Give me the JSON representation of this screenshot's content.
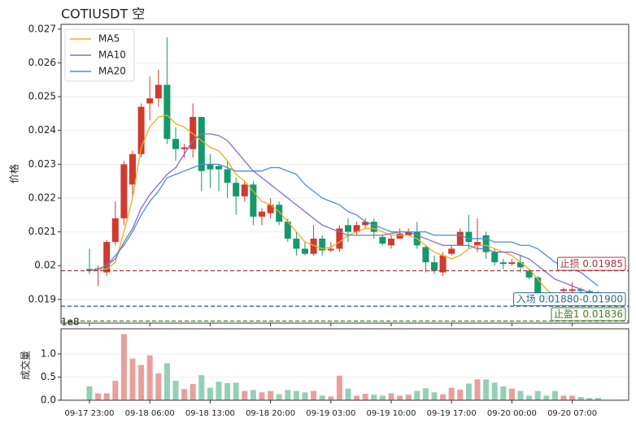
{
  "chart_data": [
    {
      "type": "candlestick",
      "title": "COTIUSDT 空",
      "ylabel": "价格",
      "up_color": "#d03a2f",
      "down_color": "#14996a",
      "grid": true,
      "legend": "upper left",
      "categories": [
        "09-17 23:00",
        null,
        null,
        null,
        null,
        null,
        null,
        "09-18 06:00",
        null,
        null,
        null,
        null,
        null,
        null,
        "09-18 13:00",
        null,
        null,
        null,
        null,
        null,
        null,
        "09-18 20:00",
        null,
        null,
        null,
        null,
        null,
        null,
        "09-19 03:00",
        null,
        null,
        null,
        null,
        null,
        null,
        "09-19 10:00",
        null,
        null,
        null,
        null,
        null,
        null,
        "09-19 17:00",
        null,
        null,
        null,
        null,
        null,
        null,
        "09-20 00:00",
        null,
        null,
        null,
        null,
        null,
        null,
        "09-20 07:00",
        null,
        null,
        null
      ],
      "open": [
        0.0199,
        0.01988,
        0.0198,
        0.0207,
        0.0214,
        0.0224,
        0.0233,
        0.0248,
        0.02495,
        0.02535,
        0.02375,
        0.02345,
        0.02345,
        0.0244,
        0.023,
        0.02295,
        0.02285,
        0.02245,
        0.02205,
        0.0224,
        0.02145,
        0.02155,
        0.0218,
        0.0213,
        0.0208,
        0.0205,
        0.02035,
        0.0208,
        0.02045,
        0.0205,
        0.0212,
        0.021,
        0.0212,
        0.0213,
        0.02085,
        0.0206,
        0.0208,
        0.0209,
        0.021,
        0.02055,
        0.0201,
        0.0198,
        0.02035,
        0.0206,
        0.021,
        0.0206,
        0.0209,
        0.0204,
        0.0201,
        0.02005,
        0.0201,
        0.01985,
        0.01965,
        0.01915,
        0.019,
        0.01925,
        0.01925,
        0.0193,
        0.01925,
        0.0192
      ],
      "high": [
        0.0205,
        0.02,
        0.02075,
        0.0219,
        0.0231,
        0.0234,
        0.0248,
        0.0256,
        0.0258,
        0.02675,
        0.0241,
        0.0236,
        0.0248,
        0.0244,
        0.0233,
        0.023,
        0.0231,
        0.0226,
        0.0225,
        0.0225,
        0.0217,
        0.022,
        0.0219,
        0.0214,
        0.021,
        0.0207,
        0.0212,
        0.0209,
        0.0207,
        0.0212,
        0.0214,
        0.0213,
        0.0214,
        0.0214,
        0.0209,
        0.0209,
        0.0211,
        0.0211,
        0.0213,
        0.0206,
        0.0203,
        0.0204,
        0.0206,
        0.0211,
        0.0215,
        0.0214,
        0.021,
        0.0205,
        0.0202,
        0.0202,
        0.0203,
        0.0199,
        0.0197,
        0.0192,
        0.01915,
        0.01935,
        0.0195,
        0.01935,
        0.0193,
        0.01925
      ],
      "low": [
        0.01975,
        0.0194,
        0.0197,
        0.0206,
        0.0212,
        0.022,
        0.0232,
        0.0243,
        0.0247,
        0.0236,
        0.0231,
        0.0232,
        0.0232,
        0.0222,
        0.0223,
        0.0222,
        0.022,
        0.0215,
        0.0219,
        0.0212,
        0.0212,
        0.0214,
        0.0212,
        0.0207,
        0.0203,
        0.0203,
        0.0203,
        0.0203,
        0.0204,
        0.0204,
        0.0207,
        0.0209,
        0.0211,
        0.0208,
        0.0206,
        0.0205,
        0.0208,
        0.0209,
        0.0205,
        0.0198,
        0.01975,
        0.0197,
        0.0203,
        0.0206,
        0.0205,
        0.0204,
        0.0202,
        0.02,
        0.0199,
        0.02,
        0.0198,
        0.0196,
        0.019,
        0.0188,
        0.01885,
        0.0192,
        0.0192,
        0.01915,
        0.0191,
        0.01905
      ],
      "close": [
        0.01985,
        0.01992,
        0.0207,
        0.0214,
        0.023,
        0.0233,
        0.0247,
        0.02495,
        0.02535,
        0.02375,
        0.02345,
        0.0235,
        0.0244,
        0.0228,
        0.02285,
        0.02285,
        0.02245,
        0.02205,
        0.0224,
        0.02145,
        0.0216,
        0.0218,
        0.0213,
        0.0208,
        0.0205,
        0.02035,
        0.0208,
        0.02045,
        0.0205,
        0.0211,
        0.021,
        0.0212,
        0.0213,
        0.021,
        0.02065,
        0.0208,
        0.02095,
        0.021,
        0.0206,
        0.0201,
        0.01985,
        0.0203,
        0.0205,
        0.021,
        0.0207,
        0.0207,
        0.0204,
        0.0201,
        0.02005,
        0.0201,
        0.01995,
        0.01965,
        0.01915,
        0.019,
        0.01895,
        0.0193,
        0.0193,
        0.01925,
        0.0192,
        0.01915
      ],
      "series": [
        {
          "name": "MA5",
          "color": "#e5b020",
          "values": [
            0.01985,
            0.0199,
            0.0199,
            0.0201,
            0.021,
            0.022,
            0.0235,
            0.0241,
            0.0244,
            0.02445,
            0.0242,
            0.0241,
            0.0239,
            0.0237,
            0.0235,
            0.0234,
            0.0231,
            0.0227,
            0.0225,
            0.0222,
            0.0219,
            0.0218,
            0.0216,
            0.0213,
            0.021,
            0.0207,
            0.0206,
            0.0205,
            0.02055,
            0.0207,
            0.0209,
            0.021,
            0.0211,
            0.0211,
            0.021,
            0.0209,
            0.0209,
            0.0209,
            0.0208,
            0.0206,
            0.0204,
            0.0203,
            0.0202,
            0.0203,
            0.0205,
            0.0206,
            0.0206,
            0.0205,
            0.0204,
            0.0203,
            0.0201,
            0.0199,
            0.0196,
            0.0193,
            0.0191,
            0.019,
            0.019,
            0.01905,
            0.0192,
            0.0191
          ]
        },
        {
          "name": "MA10",
          "color": "#8a6cc4",
          "values": [
            0.01985,
            0.0199,
            0.02,
            0.0202,
            0.0207,
            0.0211,
            0.0217,
            0.0221,
            0.0224,
            0.0227,
            0.0229,
            0.0233,
            0.0237,
            0.0239,
            0.0239,
            0.02385,
            0.0237,
            0.0234,
            0.0231,
            0.0228,
            0.0226,
            0.0224,
            0.0222,
            0.022,
            0.0218,
            0.0216,
            0.0214,
            0.0212,
            0.0211,
            0.021,
            0.0209,
            0.0209,
            0.0209,
            0.0209,
            0.0209,
            0.02095,
            0.021,
            0.021,
            0.0209,
            0.0208,
            0.0207,
            0.0206,
            0.0206,
            0.0206,
            0.0206,
            0.0205,
            0.0205,
            0.0204,
            0.0204,
            0.0204,
            0.0203,
            0.0202,
            0.02,
            0.0198,
            0.0196,
            0.0195,
            0.0194,
            0.0193,
            0.0192,
            0.0192
          ]
        },
        {
          "name": "MA20",
          "color": "#4a8fd0",
          "values": [
            0.01985,
            0.0199,
            0.02,
            0.0203,
            0.0206,
            0.021,
            0.0215,
            0.0219,
            0.0222,
            0.0226,
            0.0227,
            0.0228,
            0.0229,
            0.023,
            0.023,
            0.023,
            0.0229,
            0.0228,
            0.0228,
            0.0228,
            0.0228,
            0.0229,
            0.0229,
            0.0228,
            0.0227,
            0.0224,
            0.0222,
            0.022,
            0.0219,
            0.0218,
            0.0216,
            0.0215,
            0.0213,
            0.0212,
            0.0211,
            0.021,
            0.021,
            0.021,
            0.021,
            0.021,
            0.0209,
            0.0209,
            0.0209,
            0.0209,
            0.0208,
            0.0208,
            0.0208,
            0.0207,
            0.0207,
            0.0207,
            0.0206,
            0.0206,
            0.0205,
            0.0203,
            0.0201,
            0.02,
            0.0199,
            0.0198,
            0.0196,
            0.0194
          ]
        }
      ],
      "hlines": [
        {
          "label": "止损 0.01985",
          "value": 0.01985,
          "color": "#a8363c"
        },
        {
          "label": "入场 0.01880-0.01900",
          "value": 0.0188,
          "color": "#2e6b8f"
        },
        {
          "label": "止盈1 0.01836",
          "value": 0.01836,
          "color": "#3f7d24"
        }
      ],
      "ylim": [
        0.0183,
        0.02714
      ],
      "yticks": [
        0.019,
        0.02,
        0.021,
        0.022,
        0.023,
        0.024,
        0.025,
        0.026,
        0.027
      ]
    },
    {
      "type": "bar",
      "ylabel": "成交量",
      "offset_label": "1e8",
      "up_color": "#e8a09c",
      "down_color": "#94d0b5",
      "grid": true,
      "values": [
        0.3,
        0.15,
        0.15,
        0.42,
        1.43,
        0.9,
        0.76,
        0.97,
        0.58,
        0.8,
        0.42,
        0.24,
        0.35,
        0.54,
        0.27,
        0.4,
        0.37,
        0.38,
        0.2,
        0.22,
        0.17,
        0.2,
        0.13,
        0.22,
        0.2,
        0.17,
        0.2,
        0.1,
        0.08,
        0.53,
        0.25,
        0.1,
        0.14,
        0.12,
        0.1,
        0.15,
        0.1,
        0.12,
        0.2,
        0.26,
        0.17,
        0.13,
        0.27,
        0.23,
        0.36,
        0.45,
        0.45,
        0.38,
        0.3,
        0.25,
        0.2,
        0.1,
        0.2,
        0.1,
        0.2,
        0.1,
        0.1,
        0.07,
        0.05,
        0.05
      ],
      "ylim": [
        0,
        1.544
      ],
      "yticks": [
        {
          "value": 0,
          "label": "0.0"
        },
        0.5,
        {
          "value": 1,
          "label": "1.0"
        }
      ]
    }
  ]
}
